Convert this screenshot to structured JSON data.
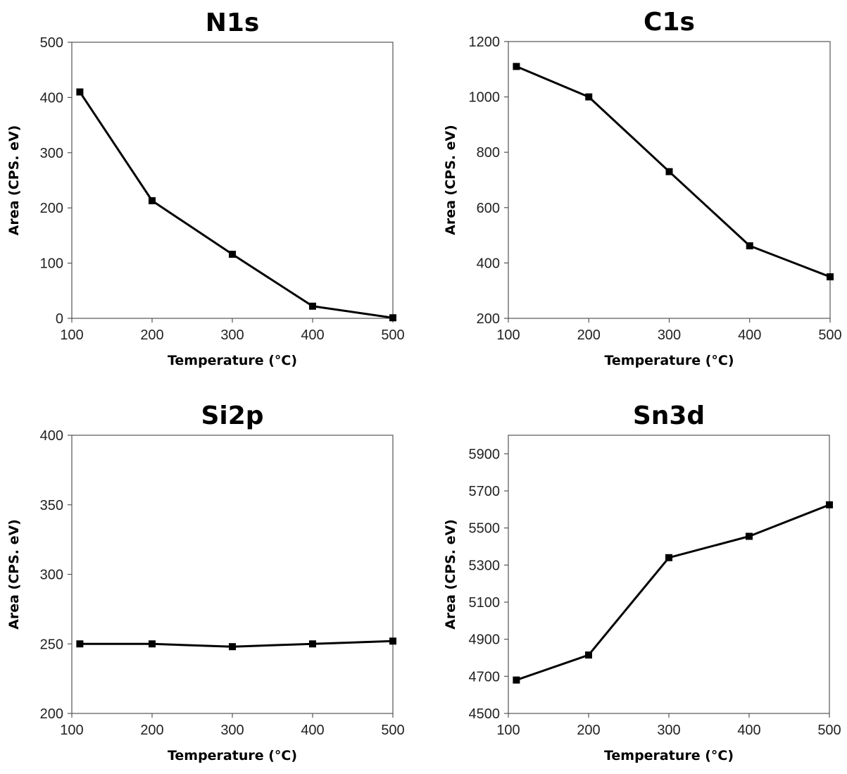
{
  "chart_data": [
    {
      "type": "line",
      "title": "N1s",
      "xlabel": "Temperature (°C)",
      "ylabel": "Area (CPS. eV)",
      "xlim": [
        100,
        500
      ],
      "ylim": [
        0,
        500
      ],
      "xticks": [
        100,
        200,
        300,
        400,
        500
      ],
      "yticks": [
        0,
        100,
        200,
        300,
        400,
        500
      ],
      "x": [
        110,
        200,
        300,
        400,
        500
      ],
      "values": [
        410,
        213,
        116,
        22,
        1
      ]
    },
    {
      "type": "line",
      "title": "C1s",
      "xlabel": "Temperature (°C)",
      "ylabel": "Area (CPS. eV)",
      "xlim": [
        100,
        500
      ],
      "ylim": [
        200,
        1200
      ],
      "xticks": [
        100,
        200,
        300,
        400,
        500
      ],
      "yticks": [
        200,
        400,
        600,
        800,
        1000,
        1200
      ],
      "x": [
        110,
        200,
        300,
        400,
        500
      ],
      "values": [
        1110,
        1000,
        730,
        462,
        350
      ]
    },
    {
      "type": "line",
      "title": "Si2p",
      "xlabel": "Temperature (°C)",
      "ylabel": "Area (CPS. eV)",
      "xlim": [
        100,
        500
      ],
      "ylim": [
        200,
        400
      ],
      "xticks": [
        100,
        200,
        300,
        400,
        500
      ],
      "yticks": [
        200,
        250,
        300,
        350,
        400
      ],
      "x": [
        110,
        200,
        300,
        400,
        500
      ],
      "values": [
        250,
        250,
        248,
        250,
        252
      ]
    },
    {
      "type": "line",
      "title": "Sn3d",
      "xlabel": "Temperature (°C)",
      "ylabel": "Area (CPS. eV)",
      "xlim": [
        100,
        500
      ],
      "ylim": [
        4500,
        6000
      ],
      "xticks": [
        100,
        200,
        300,
        400,
        500
      ],
      "yticks": [
        4500,
        4700,
        4900,
        5100,
        5300,
        5500,
        5700,
        5900
      ],
      "x": [
        110,
        200,
        300,
        400,
        500
      ],
      "values": [
        4680,
        4815,
        5340,
        5455,
        5625
      ]
    }
  ]
}
